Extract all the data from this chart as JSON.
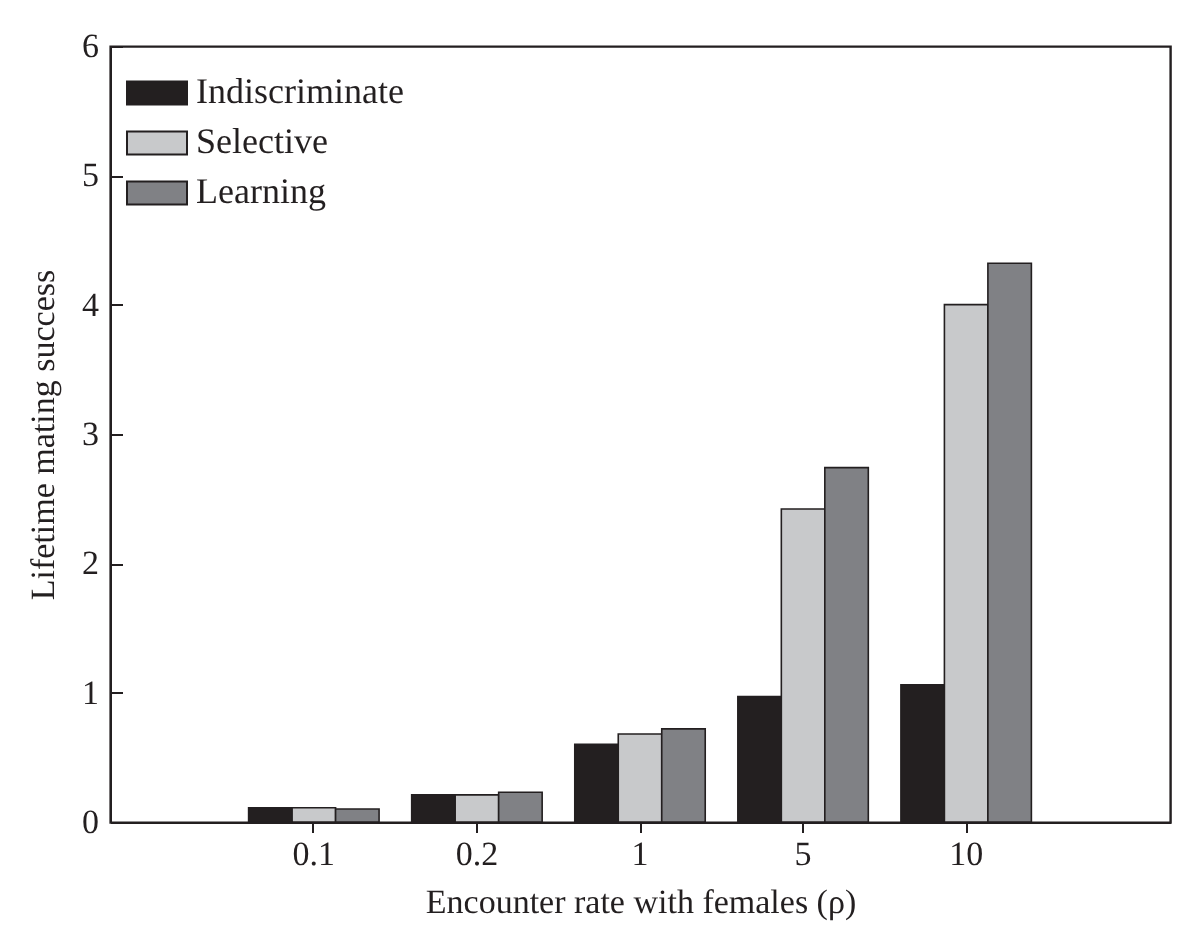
{
  "chart_data": {
    "type": "bar",
    "xlabel": "Encounter rate with females (ρ)",
    "ylabel": "Lifetime mating success",
    "categories": [
      "0.1",
      "0.2",
      "1",
      "5",
      "10"
    ],
    "series": [
      {
        "name": "Indiscriminate",
        "color": "#231f20",
        "values": [
          0.11,
          0.21,
          0.6,
          0.97,
          1.06
        ]
      },
      {
        "name": "Selective",
        "color": "#c8c9cb",
        "values": [
          0.11,
          0.21,
          0.68,
          2.42,
          4.0
        ]
      },
      {
        "name": "Learning",
        "color": "#808185",
        "values": [
          0.1,
          0.23,
          0.72,
          2.74,
          4.32
        ]
      }
    ],
    "ylim": [
      0,
      6
    ],
    "yticks": [
      0,
      1,
      2,
      3,
      4,
      5,
      6
    ],
    "grid": false,
    "legend": "top left"
  }
}
